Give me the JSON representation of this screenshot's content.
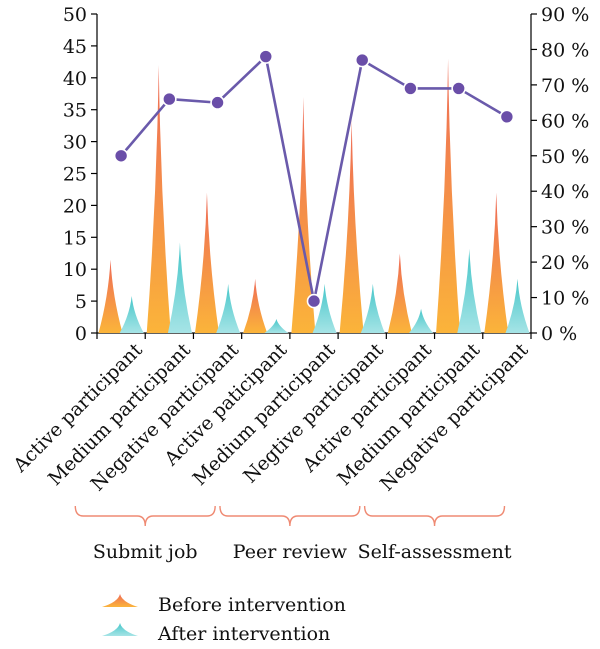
{
  "chart_data": {
    "type": "bar+line",
    "categories": [
      "Active participant",
      "Medium participant",
      "Negative participant",
      "Active paticipant",
      "Medium participant",
      "Negtive participant",
      "Active participant",
      "Medium participant",
      "Negative participant"
    ],
    "groups": [
      {
        "label": "Submit job",
        "from": 0,
        "to": 2
      },
      {
        "label": "Peer review",
        "from": 3,
        "to": 5
      },
      {
        "label": "Self-assessment",
        "from": 6,
        "to": 8
      }
    ],
    "series": [
      {
        "name": "Before intervention",
        "axis": "left",
        "kind": "bar",
        "values": [
          11.5,
          42,
          22,
          8.5,
          37,
          33.5,
          12.5,
          43,
          22
        ]
      },
      {
        "name": "After intervention",
        "axis": "left",
        "kind": "bar",
        "values": [
          5.8,
          14.2,
          7.7,
          2.2,
          7.7,
          7.7,
          3.8,
          13.2,
          8.5
        ]
      },
      {
        "name": "",
        "axis": "right",
        "kind": "line",
        "values": [
          50,
          66,
          65,
          78,
          9,
          77,
          69,
          69,
          61
        ]
      }
    ],
    "y_left": {
      "min": 0,
      "max": 50,
      "ticks": [
        "0",
        "5",
        "10",
        "15",
        "20",
        "25",
        "30",
        "35",
        "40",
        "45",
        "50"
      ]
    },
    "y_right": {
      "min": 0,
      "max": 90,
      "ticks": [
        "0 %",
        "10 %",
        "20 %",
        "30 %",
        "40 %",
        "50 %",
        "60 %",
        "70 %",
        "80 %",
        "90 %"
      ]
    },
    "legend": {
      "placement": "bottom"
    },
    "grid": false,
    "colors": {
      "before_top": "#ee6a57",
      "before_bottom": "#fbb43a",
      "after_top": "#45c6c9",
      "after_bottom": "#a6e4e6",
      "line": "#6a5aab",
      "marker": "#6a4ea8",
      "bracket": "#ef8a73",
      "axis": "#000000"
    }
  }
}
